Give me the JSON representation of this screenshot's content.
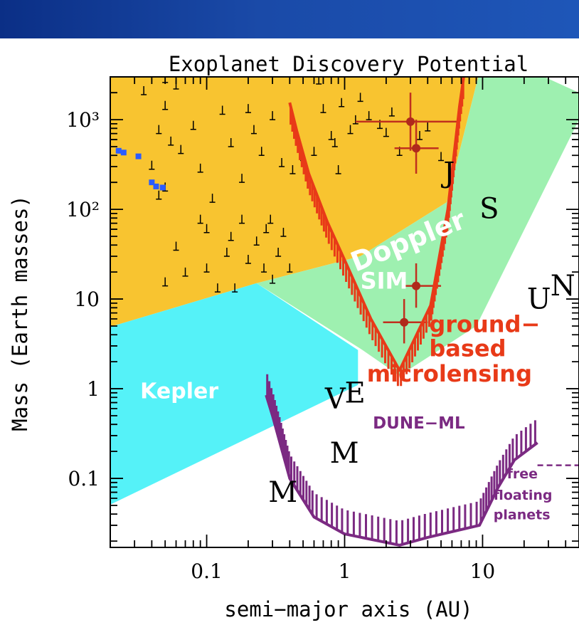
{
  "chart_data": {
    "type": "scatter",
    "title": "Exoplanet Discovery Potential",
    "xlabel": "semi−major axis (AU)",
    "ylabel": "Mass (Earth masses)",
    "x_scale": "log",
    "y_scale": "log",
    "xlim": [
      0.02,
      50
    ],
    "ylim": [
      0.017,
      3000
    ],
    "x_ticks": [
      {
        "value": 0.1,
        "label": "0.1"
      },
      {
        "value": 1,
        "label": "1"
      },
      {
        "value": 10,
        "label": "10"
      }
    ],
    "y_ticks": [
      {
        "value": 0.1,
        "label": "0.1"
      },
      {
        "value": 1,
        "label": "1"
      },
      {
        "value": 10,
        "label": "10"
      },
      {
        "value": 100,
        "label": "10²"
      },
      {
        "value": 1000,
        "label": "10³"
      }
    ],
    "regions": [
      {
        "label": "Doppler",
        "color": "#f8c430",
        "polygon": [
          [
            0.02,
            3000
          ],
          [
            9.3,
            3000
          ],
          [
            5.5,
            120
          ],
          [
            1.3,
            30
          ],
          [
            0.23,
            15
          ],
          [
            0.02,
            4.9
          ]
        ]
      },
      {
        "label": "SIM",
        "color": "#9ef0b0",
        "polygon": [
          [
            0.23,
            15
          ],
          [
            1.3,
            30
          ],
          [
            5.5,
            120
          ],
          [
            9.3,
            3000
          ],
          [
            28,
            3000
          ],
          [
            50,
            2000
          ],
          [
            50,
            1000
          ],
          [
            9,
            5
          ],
          [
            2.5,
            1.4
          ],
          [
            1.3,
            2.8
          ]
        ]
      },
      {
        "label": "Kepler",
        "color": "#55f2f8",
        "polygon": [
          [
            0.02,
            4.9
          ],
          [
            0.23,
            15
          ],
          [
            1.25,
            2.7
          ],
          [
            1.25,
            1.1
          ],
          [
            0.02,
            0.051
          ]
        ]
      }
    ],
    "curves": [
      {
        "label": "ground−based microlensing",
        "color": "#e83a18",
        "points": [
          [
            0.4,
            1550
          ],
          [
            0.45,
            750
          ],
          [
            0.55,
            250
          ],
          [
            0.75,
            72
          ],
          [
            1.05,
            23
          ],
          [
            1.55,
            6
          ],
          [
            2.5,
            1.6
          ],
          [
            4.2,
            8.5
          ],
          [
            5.6,
            100
          ],
          [
            6.2,
            400
          ],
          [
            6.8,
            1400
          ],
          [
            7.3,
            3000
          ]
        ]
      },
      {
        "label": "DUNE−ML",
        "color": "#7b2a82",
        "points": [
          [
            0.27,
            0.85
          ],
          [
            0.3,
            0.5
          ],
          [
            0.4,
            0.1
          ],
          [
            0.6,
            0.037
          ],
          [
            1,
            0.024
          ],
          [
            2.5,
            0.018
          ],
          [
            4,
            0.022
          ],
          [
            9.5,
            0.03
          ],
          [
            13,
            0.08
          ],
          [
            17,
            0.16
          ],
          [
            25,
            0.25
          ]
        ]
      }
    ],
    "detected_planets": [
      [
        0.035,
        1900
      ],
      [
        0.045,
        700
      ],
      [
        0.05,
        2600
      ],
      [
        0.05,
        1300
      ],
      [
        0.06,
        2200
      ],
      [
        0.055,
        520
      ],
      [
        0.04,
        280
      ],
      [
        0.045,
        130
      ],
      [
        0.05,
        160
      ],
      [
        0.065,
        420
      ],
      [
        0.08,
        780
      ],
      [
        0.1,
        3000
      ],
      [
        0.09,
        260
      ],
      [
        0.11,
        120
      ],
      [
        0.13,
        1150
      ],
      [
        0.15,
        500
      ],
      [
        0.18,
        200
      ],
      [
        0.2,
        1200
      ],
      [
        0.22,
        700
      ],
      [
        0.25,
        400
      ],
      [
        0.3,
        1000
      ],
      [
        0.35,
        300
      ],
      [
        0.42,
        250
      ],
      [
        0.5,
        350
      ],
      [
        0.6,
        400
      ],
      [
        0.65,
        2500
      ],
      [
        0.7,
        1200
      ],
      [
        0.8,
        600
      ],
      [
        0.85,
        500
      ],
      [
        0.9,
        250
      ],
      [
        0.95,
        1400
      ],
      [
        1.1,
        700
      ],
      [
        1.2,
        900
      ],
      [
        1.3,
        1600
      ],
      [
        1.5,
        1000
      ],
      [
        1.8,
        800
      ],
      [
        2,
        650
      ],
      [
        2.2,
        1100
      ],
      [
        2.5,
        400
      ],
      [
        3,
        900
      ],
      [
        3.5,
        600
      ],
      [
        4,
        750
      ],
      [
        5,
        350
      ],
      [
        0.06,
        35
      ],
      [
        0.07,
        18
      ],
      [
        0.05,
        14
      ],
      [
        0.09,
        70
      ],
      [
        0.1,
        20
      ],
      [
        0.12,
        12
      ],
      [
        0.14,
        30
      ],
      [
        0.16,
        12
      ],
      [
        0.18,
        70
      ],
      [
        0.2,
        25
      ],
      [
        0.23,
        40
      ],
      [
        0.26,
        20
      ],
      [
        0.3,
        15
      ],
      [
        0.33,
        30
      ],
      [
        0.36,
        50
      ],
      [
        0.4,
        20
      ],
      [
        0.1,
        55
      ],
      [
        0.15,
        45
      ],
      [
        0.27,
        55
      ],
      [
        0.29,
        70
      ]
    ],
    "small_transit_planets": [
      [
        0.023,
        450
      ],
      [
        0.025,
        430
      ],
      [
        0.032,
        390
      ],
      [
        0.04,
        200
      ],
      [
        0.043,
        180
      ],
      [
        0.048,
        175
      ]
    ],
    "microlensing_planets": [
      {
        "x": 3.0,
        "y": 950,
        "xerr": [
          1.2,
          6.5
        ],
        "yerr": [
          450,
          2000
        ]
      },
      {
        "x": 3.3,
        "y": 480,
        "xerr": [
          2.3,
          4.8
        ],
        "yerr": [
          250,
          1000
        ]
      },
      {
        "x": 3.3,
        "y": 14,
        "xerr": [
          2.6,
          5.0
        ],
        "yerr": [
          8,
          25
        ]
      },
      {
        "x": 2.7,
        "y": 5.5,
        "xerr": [
          1.9,
          4.0
        ],
        "yerr": [
          3.2,
          10
        ]
      }
    ],
    "free_floating_line": {
      "x_range": [
        25,
        50
      ],
      "y": 0.14,
      "color": "#7b2a82"
    },
    "region_labels": [
      {
        "text": "Doppler",
        "x": 1.2,
        "y": 20,
        "color": "#ffffff",
        "rotate": -22,
        "size": 38
      },
      {
        "text": "SIM",
        "x": 1.3,
        "y": 13,
        "color": "#ffffff",
        "rotate": 0,
        "size": 32
      },
      {
        "text": "Kepler",
        "x": 0.033,
        "y": 0.78,
        "color": "#ffffff",
        "rotate": 0,
        "size": 30
      },
      {
        "text": "ground−",
        "x": 4.1,
        "y": 4.3,
        "color": "#e83a18",
        "rotate": 0,
        "size": 32
      },
      {
        "text": "based",
        "x": 4.1,
        "y": 2.3,
        "color": "#e83a18",
        "rotate": 0,
        "size": 32
      },
      {
        "text": "microlensing",
        "x": 1.45,
        "y": 1.2,
        "color": "#e83a18",
        "rotate": 0,
        "size": 32
      },
      {
        "text": "DUNE−ML",
        "x": 1.6,
        "y": 0.36,
        "color": "#7b2a82",
        "rotate": 0,
        "size": 23
      },
      {
        "text": "free",
        "x": 15,
        "y": 0.1,
        "color": "#7b2a82",
        "rotate": 0,
        "size": 19
      },
      {
        "text": "floating",
        "x": 12,
        "y": 0.058,
        "color": "#7b2a82",
        "rotate": 0,
        "size": 19
      },
      {
        "text": "planets",
        "x": 12,
        "y": 0.035,
        "color": "#7b2a82",
        "rotate": 0,
        "size": 19
      }
    ],
    "solar_system_labels": [
      {
        "text": "J",
        "x": 5.2,
        "y": 200
      },
      {
        "text": "S",
        "x": 9.5,
        "y": 80
      },
      {
        "text": "U",
        "x": 21,
        "y": 7.8
      },
      {
        "text": "N",
        "x": 31,
        "y": 11
      },
      {
        "text": "V",
        "x": 0.72,
        "y": 0.6
      },
      {
        "text": "E",
        "x": 1.0,
        "y": 0.7
      },
      {
        "text": "M",
        "x": 0.78,
        "y": 0.15
      },
      {
        "text": "M",
        "x": 0.28,
        "y": 0.055
      }
    ]
  }
}
